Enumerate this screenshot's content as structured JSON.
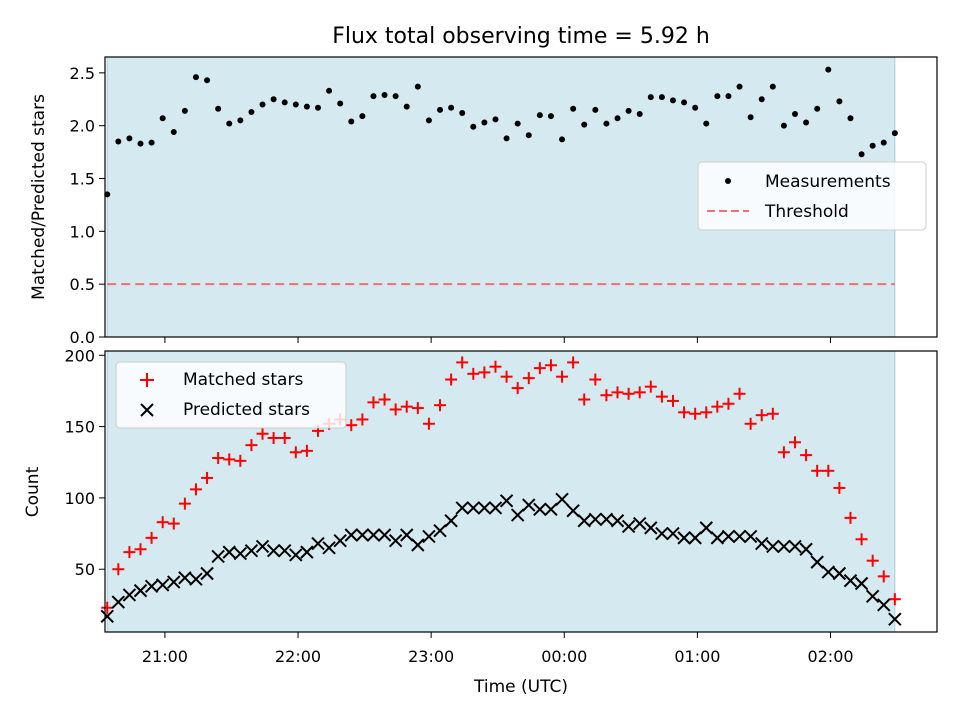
{
  "title": "Flux total observing time = 5.92 h",
  "colors": {
    "observing_band": "#d4eaf0",
    "measurements": "#000000",
    "threshold": "#f07070",
    "matched": "#ff0000",
    "predicted": "#000000"
  },
  "chart_data": [
    {
      "type": "scatter",
      "panel": "top",
      "ylabel": "Matched/Predicted stars",
      "xlabel": "",
      "ylim": [
        0.0,
        2.65
      ],
      "x_range": [
        "20:33",
        "02:48"
      ],
      "yticks": [
        "0.0",
        "0.5",
        "1.0",
        "1.5",
        "2.0",
        "2.5"
      ],
      "ytick_values": [
        0.0,
        0.5,
        1.0,
        1.5,
        2.0,
        2.5
      ],
      "xticks_values": [
        "21:00",
        "22:00",
        "23:00",
        "00:00",
        "01:00",
        "02:00"
      ],
      "observing_window": [
        "20:34",
        "02:29"
      ],
      "legend": {
        "position": "center-right",
        "entries": [
          "Measurements",
          "Threshold"
        ]
      },
      "threshold": 0.5,
      "series": [
        {
          "name": "Measurements",
          "marker": "dot",
          "points": [
            [
              "20:34",
              1.35
            ],
            [
              "20:39",
              1.85
            ],
            [
              "20:44",
              1.88
            ],
            [
              "20:49",
              1.83
            ],
            [
              "20:54",
              1.84
            ],
            [
              "20:59",
              2.07
            ],
            [
              "21:04",
              1.94
            ],
            [
              "21:09",
              2.14
            ],
            [
              "21:14",
              2.46
            ],
            [
              "21:19",
              2.43
            ],
            [
              "21:24",
              2.16
            ],
            [
              "21:29",
              2.02
            ],
            [
              "21:34",
              2.05
            ],
            [
              "21:39",
              2.13
            ],
            [
              "21:44",
              2.2
            ],
            [
              "21:49",
              2.25
            ],
            [
              "21:54",
              2.22
            ],
            [
              "21:59",
              2.2
            ],
            [
              "22:04",
              2.18
            ],
            [
              "22:09",
              2.17
            ],
            [
              "22:14",
              2.33
            ],
            [
              "22:19",
              2.21
            ],
            [
              "22:24",
              2.04
            ],
            [
              "22:29",
              2.09
            ],
            [
              "22:34",
              2.28
            ],
            [
              "22:39",
              2.29
            ],
            [
              "22:44",
              2.28
            ],
            [
              "22:49",
              2.18
            ],
            [
              "22:54",
              2.37
            ],
            [
              "22:59",
              2.05
            ],
            [
              "23:04",
              2.15
            ],
            [
              "23:09",
              2.17
            ],
            [
              "23:14",
              2.12
            ],
            [
              "23:19",
              1.99
            ],
            [
              "23:24",
              2.03
            ],
            [
              "23:29",
              2.06
            ],
            [
              "23:34",
              1.88
            ],
            [
              "23:39",
              2.02
            ],
            [
              "23:44",
              1.91
            ],
            [
              "23:49",
              2.1
            ],
            [
              "23:54",
              2.09
            ],
            [
              "23:59",
              1.87
            ],
            [
              "00:04",
              2.16
            ],
            [
              "00:09",
              2.01
            ],
            [
              "00:14",
              2.15
            ],
            [
              "00:19",
              2.02
            ],
            [
              "00:24",
              2.07
            ],
            [
              "00:29",
              2.14
            ],
            [
              "00:34",
              2.11
            ],
            [
              "00:39",
              2.27
            ],
            [
              "00:44",
              2.27
            ],
            [
              "00:49",
              2.24
            ],
            [
              "00:54",
              2.22
            ],
            [
              "00:59",
              2.17
            ],
            [
              "01:04",
              2.02
            ],
            [
              "01:09",
              2.28
            ],
            [
              "01:14",
              2.28
            ],
            [
              "01:19",
              2.37
            ],
            [
              "01:24",
              2.08
            ],
            [
              "01:29",
              2.25
            ],
            [
              "01:34",
              2.37
            ],
            [
              "01:39",
              2.0
            ],
            [
              "01:44",
              2.11
            ],
            [
              "01:49",
              2.03
            ],
            [
              "01:54",
              2.16
            ],
            [
              "01:59",
              2.53
            ],
            [
              "02:04",
              2.23
            ],
            [
              "02:09",
              2.07
            ],
            [
              "02:14",
              1.73
            ],
            [
              "02:19",
              1.81
            ],
            [
              "02:24",
              1.84
            ],
            [
              "02:29",
              1.93
            ]
          ]
        },
        {
          "name": "Threshold",
          "marker": "dashed-line",
          "points": [
            [
              "20:34",
              0.5
            ],
            [
              "02:29",
              0.5
            ]
          ]
        }
      ]
    },
    {
      "type": "scatter",
      "panel": "bottom",
      "ylabel": "Count",
      "xlabel": "Time (UTC)",
      "ylim": [
        6,
        203
      ],
      "x_range": [
        "20:33",
        "02:48"
      ],
      "yticks": [
        "50",
        "100",
        "150",
        "200"
      ],
      "ytick_values": [
        50,
        100,
        150,
        200
      ],
      "xticks": [
        "21:00",
        "22:00",
        "23:00",
        "00:00",
        "01:00",
        "02:00"
      ],
      "xticks_values": [
        "21:00",
        "22:00",
        "23:00",
        "00:00",
        "01:00",
        "02:00"
      ],
      "observing_window": [
        "20:34",
        "02:29"
      ],
      "legend": {
        "position": "top-left",
        "entries": [
          "Matched stars",
          "Predicted stars"
        ]
      },
      "series": [
        {
          "name": "Matched stars",
          "marker": "plus",
          "points": [
            [
              "20:34",
              23
            ],
            [
              "20:39",
              50
            ],
            [
              "20:44",
              62
            ],
            [
              "20:49",
              64
            ],
            [
              "20:54",
              72
            ],
            [
              "20:59",
              83
            ],
            [
              "21:04",
              82
            ],
            [
              "21:09",
              96
            ],
            [
              "21:14",
              106
            ],
            [
              "21:19",
              114
            ],
            [
              "21:24",
              128
            ],
            [
              "21:29",
              127
            ],
            [
              "21:34",
              126
            ],
            [
              "21:39",
              137
            ],
            [
              "21:44",
              145
            ],
            [
              "21:49",
              142
            ],
            [
              "21:54",
              142
            ],
            [
              "21:59",
              132
            ],
            [
              "22:04",
              133
            ],
            [
              "22:09",
              147
            ],
            [
              "22:14",
              152
            ],
            [
              "22:19",
              155
            ],
            [
              "22:24",
              151
            ],
            [
              "22:29",
              155
            ],
            [
              "22:34",
              167
            ],
            [
              "22:39",
              169
            ],
            [
              "22:44",
              162
            ],
            [
              "22:49",
              164
            ],
            [
              "22:54",
              163
            ],
            [
              "22:59",
              152
            ],
            [
              "23:04",
              165
            ],
            [
              "23:09",
              183
            ],
            [
              "23:14",
              195
            ],
            [
              "23:19",
              187
            ],
            [
              "23:24",
              188
            ],
            [
              "23:29",
              192
            ],
            [
              "23:34",
              185
            ],
            [
              "23:39",
              177
            ],
            [
              "23:44",
              184
            ],
            [
              "23:49",
              191
            ],
            [
              "23:54",
              193
            ],
            [
              "23:59",
              185
            ],
            [
              "00:04",
              195
            ],
            [
              "00:09",
              169
            ],
            [
              "00:14",
              183
            ],
            [
              "00:19",
              172
            ],
            [
              "00:24",
              174
            ],
            [
              "00:29",
              173
            ],
            [
              "00:34",
              174
            ],
            [
              "00:39",
              178
            ],
            [
              "00:44",
              171
            ],
            [
              "00:49",
              168
            ],
            [
              "00:54",
              160
            ],
            [
              "00:59",
              159
            ],
            [
              "01:04",
              160
            ],
            [
              "01:09",
              164
            ],
            [
              "01:14",
              166
            ],
            [
              "01:19",
              173
            ],
            [
              "01:24",
              152
            ],
            [
              "01:29",
              158
            ],
            [
              "01:34",
              159
            ],
            [
              "01:39",
              132
            ],
            [
              "01:44",
              139
            ],
            [
              "01:49",
              130
            ],
            [
              "01:54",
              119
            ],
            [
              "01:59",
              119
            ],
            [
              "02:04",
              107
            ],
            [
              "02:09",
              86
            ],
            [
              "02:14",
              71
            ],
            [
              "02:19",
              56
            ],
            [
              "02:24",
              45
            ],
            [
              "02:29",
              29
            ]
          ]
        },
        {
          "name": "Predicted stars",
          "marker": "x",
          "points": [
            [
              "20:34",
              17
            ],
            [
              "20:39",
              27
            ],
            [
              "20:44",
              32
            ],
            [
              "20:49",
              35
            ],
            [
              "20:54",
              38
            ],
            [
              "20:59",
              39
            ],
            [
              "21:04",
              41
            ],
            [
              "21:09",
              44
            ],
            [
              "21:14",
              43
            ],
            [
              "21:19",
              47
            ],
            [
              "21:24",
              59
            ],
            [
              "21:29",
              62
            ],
            [
              "21:34",
              61
            ],
            [
              "21:39",
              63
            ],
            [
              "21:44",
              66
            ],
            [
              "21:49",
              63
            ],
            [
              "21:54",
              63
            ],
            [
              "21:59",
              60
            ],
            [
              "22:04",
              62
            ],
            [
              "22:09",
              68
            ],
            [
              "22:14",
              65
            ],
            [
              "22:19",
              70
            ],
            [
              "22:24",
              74
            ],
            [
              "22:29",
              74
            ],
            [
              "22:34",
              74
            ],
            [
              "22:39",
              74
            ],
            [
              "22:44",
              70
            ],
            [
              "22:49",
              74
            ],
            [
              "22:54",
              67
            ],
            [
              "22:59",
              73
            ],
            [
              "23:04",
              77
            ],
            [
              "23:09",
              84
            ],
            [
              "23:14",
              93
            ],
            [
              "23:19",
              93
            ],
            [
              "23:24",
              93
            ],
            [
              "23:29",
              93
            ],
            [
              "23:34",
              98
            ],
            [
              "23:39",
              88
            ],
            [
              "23:44",
              95
            ],
            [
              "23:49",
              92
            ],
            [
              "23:54",
              92
            ],
            [
              "23:59",
              99
            ],
            [
              "00:04",
              91
            ],
            [
              "00:09",
              84
            ],
            [
              "00:14",
              85
            ],
            [
              "00:19",
              85
            ],
            [
              "00:24",
              84
            ],
            [
              "00:29",
              80
            ],
            [
              "00:34",
              82
            ],
            [
              "00:39",
              79
            ],
            [
              "00:44",
              75
            ],
            [
              "00:49",
              75
            ],
            [
              "00:54",
              72
            ],
            [
              "00:59",
              72
            ],
            [
              "01:04",
              79
            ],
            [
              "01:09",
              72
            ],
            [
              "01:14",
              73
            ],
            [
              "01:19",
              73
            ],
            [
              "01:24",
              73
            ],
            [
              "01:29",
              68
            ],
            [
              "01:34",
              66
            ],
            [
              "01:39",
              66
            ],
            [
              "01:44",
              66
            ],
            [
              "01:49",
              64
            ],
            [
              "01:54",
              55
            ],
            [
              "01:59",
              48
            ],
            [
              "02:04",
              47
            ],
            [
              "02:09",
              42
            ],
            [
              "02:14",
              40
            ],
            [
              "02:19",
              31
            ],
            [
              "02:24",
              25
            ],
            [
              "02:29",
              15
            ]
          ]
        }
      ]
    }
  ]
}
